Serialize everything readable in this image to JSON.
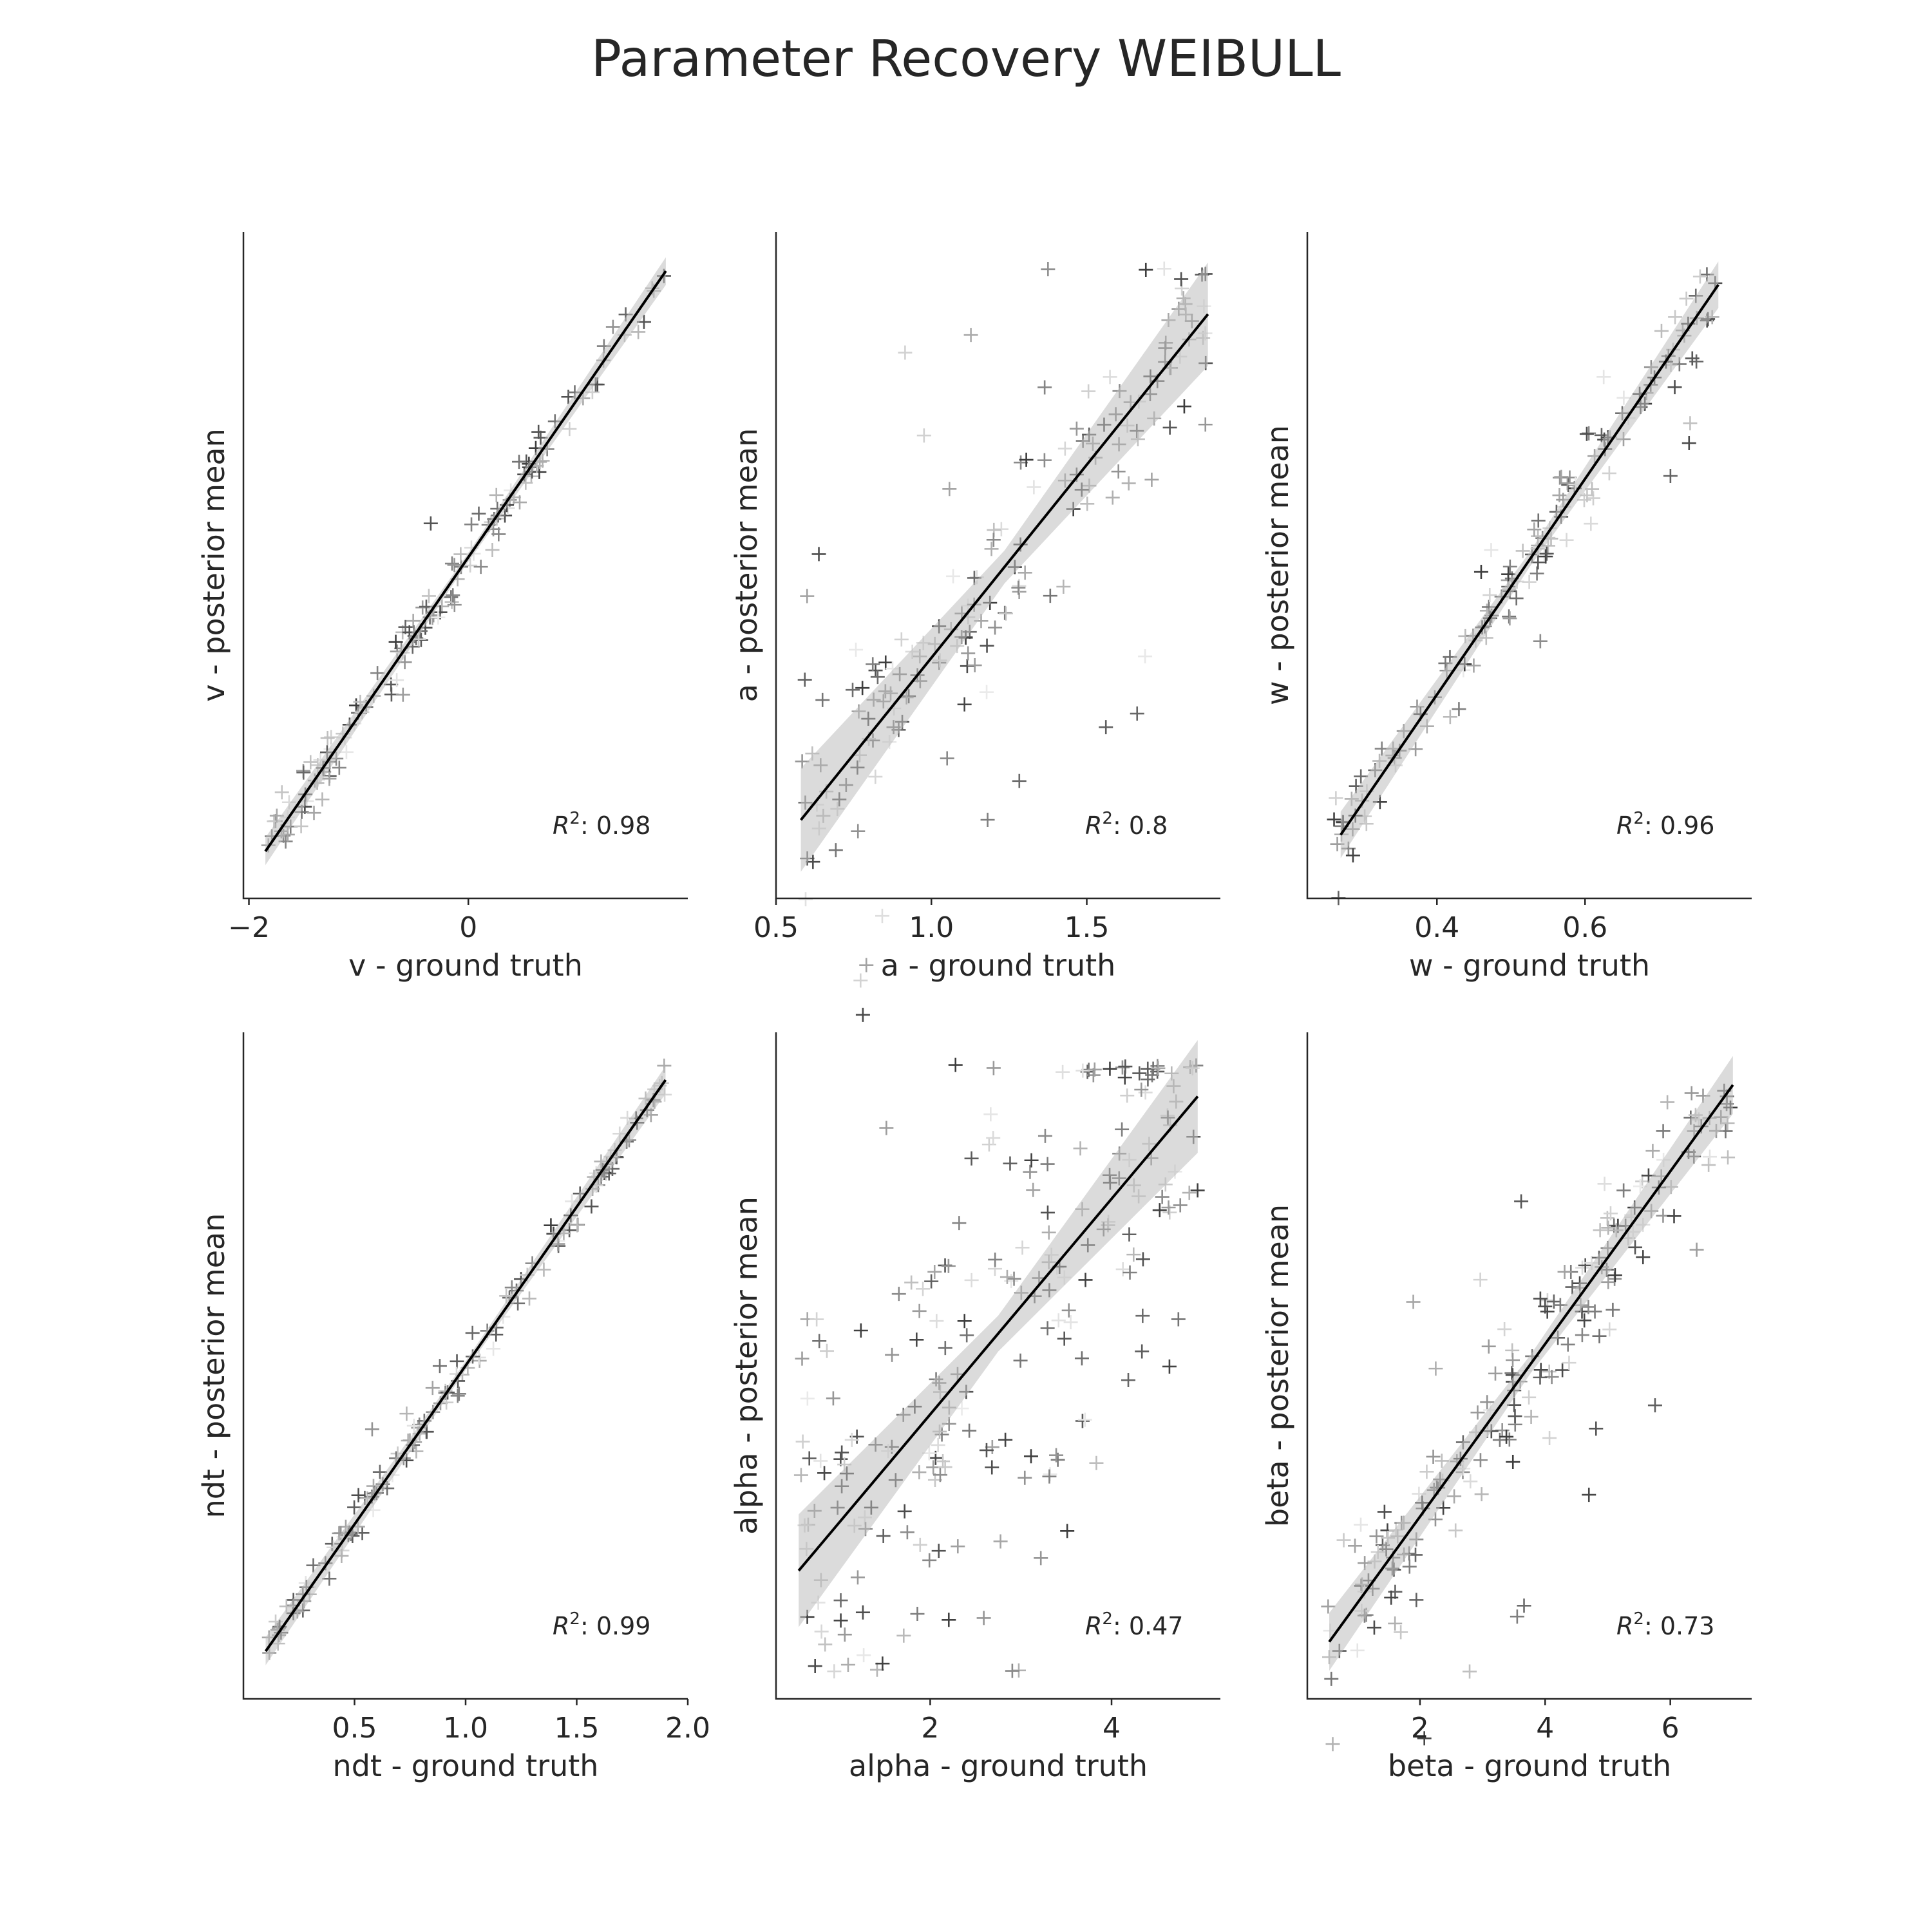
{
  "figure": {
    "title": "Parameter Recovery WEIBULL"
  },
  "chart_data": [
    {
      "type": "scatter",
      "id": "v",
      "xlabel": "v - ground truth",
      "ylabel": "v - posterior mean",
      "r2_prefix": "R",
      "r2_sup": "2",
      "r2_value": ": 0.98",
      "xlim": [
        -2.05,
        2.0
      ],
      "ylim": [
        -2.15,
        2.1
      ],
      "xticks": [
        -2,
        0
      ],
      "xtick_labels": [
        "−2",
        "0"
      ],
      "regression": {
        "x0": -1.85,
        "x1": 1.8,
        "y0": -1.85,
        "y1": 1.85,
        "ci": 0.04
      },
      "x_range": [
        -1.85,
        1.8
      ],
      "noise": 0.08,
      "outlier_rate": 0.06,
      "outlier_scale": 0.35,
      "n_points": 150,
      "seed": 11
    },
    {
      "type": "scatter",
      "id": "a",
      "xlabel": "a - ground truth",
      "ylabel": "a - posterior mean",
      "r2_prefix": "R",
      "r2_sup": "2",
      "r2_value": ": 0.8",
      "xlim": [
        0.5,
        1.93
      ],
      "ylim": [
        0.35,
        2.05
      ],
      "xticks": [
        0.5,
        1.0,
        1.5
      ],
      "xtick_labels": [
        "0.5",
        "1.0",
        "1.5"
      ],
      "regression": {
        "x0": 0.58,
        "x1": 1.89,
        "y0": 0.55,
        "y1": 1.84,
        "ci": 0.06
      },
      "x_range": [
        0.57,
        1.89
      ],
      "noise": 0.12,
      "outlier_rate": 0.15,
      "outlier_scale": 0.35,
      "y_cap": 1.97,
      "n_points": 170,
      "seed": 23
    },
    {
      "type": "scatter",
      "id": "w",
      "xlabel": "w - ground truth",
      "ylabel": "w - posterior mean",
      "r2_prefix": "R",
      "r2_sup": "2",
      "r2_value": ": 0.96",
      "xlim": [
        0.225,
        0.825
      ],
      "ylim": [
        0.2,
        0.83
      ],
      "xticks": [
        0.4,
        0.6
      ],
      "xtick_labels": [
        "0.4",
        "0.6"
      ],
      "regression": {
        "x0": 0.27,
        "x1": 0.78,
        "y0": 0.26,
        "y1": 0.78,
        "ci": 0.01
      },
      "x_range": [
        0.26,
        0.78
      ],
      "noise": 0.02,
      "outlier_rate": 0.08,
      "outlier_scale": 0.06,
      "n_points": 150,
      "seed": 37
    },
    {
      "type": "scatter",
      "id": "ndt",
      "xlabel": "ndt - ground truth",
      "ylabel": "ndt - posterior mean",
      "r2_prefix": "R",
      "r2_sup": "2",
      "r2_value": ": 0.99",
      "xlim": [
        0.0,
        2.0
      ],
      "ylim": [
        -0.05,
        2.05
      ],
      "xticks": [
        0.5,
        1.0,
        1.5,
        2.0
      ],
      "xtick_labels": [
        "0.5",
        "1.0",
        "1.5",
        "2.0"
      ],
      "regression": {
        "x0": 0.1,
        "x1": 1.9,
        "y0": 0.1,
        "y1": 1.9,
        "ci": 0.02
      },
      "x_range": [
        0.1,
        1.9
      ],
      "noise": 0.035,
      "outlier_rate": 0.04,
      "outlier_scale": 0.12,
      "n_points": 150,
      "seed": 41
    },
    {
      "type": "scatter",
      "id": "alpha",
      "xlabel": "alpha - ground truth",
      "ylabel": "alpha - posterior mean",
      "r2_prefix": "R",
      "r2_sup": "2",
      "r2_value": ": 0.47",
      "xlim": [
        0.3,
        5.2
      ],
      "ylim": [
        0.0,
        5.2
      ],
      "xticks": [
        2,
        4
      ],
      "xtick_labels": [
        "2",
        "4"
      ],
      "regression": {
        "x0": 0.55,
        "x1": 4.95,
        "y0": 1.0,
        "y1": 4.7,
        "ci": 0.2
      },
      "x_range": [
        0.55,
        4.95
      ],
      "noise": 0.9,
      "outlier_rate": 0.12,
      "outlier_scale": 1.2,
      "y_cap": 4.95,
      "y_floor": 0.2,
      "n_points": 220,
      "seed": 53
    },
    {
      "type": "scatter",
      "id": "beta",
      "xlabel": "beta - ground truth",
      "ylabel": "beta - posterior mean",
      "r2_prefix": "R",
      "r2_sup": "2",
      "r2_value": ": 0.73",
      "xlim": [
        0.2,
        7.3
      ],
      "ylim": [
        0.0,
        7.6
      ],
      "xticks": [
        2,
        4,
        6
      ],
      "xtick_labels": [
        "2",
        "4",
        "6"
      ],
      "regression": {
        "x0": 0.55,
        "x1": 7.0,
        "y0": 0.65,
        "y1": 7.0,
        "ci": 0.15
      },
      "x_range": [
        0.5,
        7.0
      ],
      "noise": 0.35,
      "outlier_rate": 0.14,
      "outlier_scale": 1.5,
      "y_cap": 6.95,
      "n_points": 200,
      "seed": 67
    }
  ]
}
